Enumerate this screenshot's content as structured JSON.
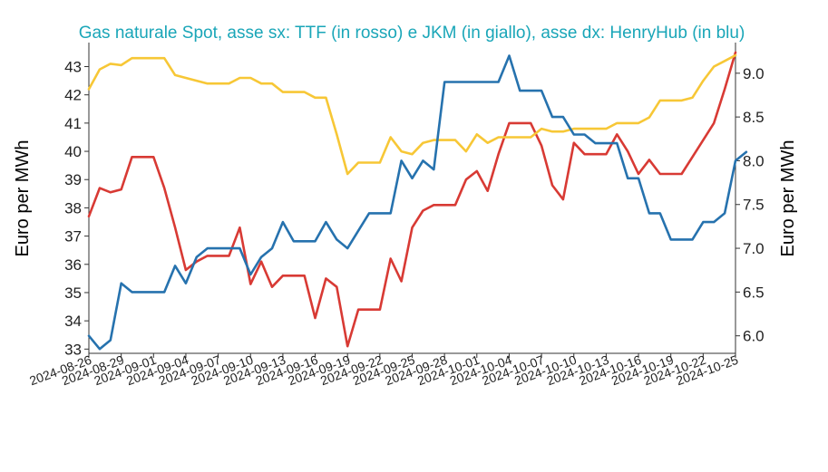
{
  "chart_data": {
    "type": "line",
    "title": "Gas naturale Spot, asse sx: TTF (in rosso) e JKM (in giallo), asse dx: HenryHub (in blu)",
    "ylabel_left": "Euro per MWh",
    "ylabel_right": "Euro per MWh",
    "ylim_left": [
      32.85,
      43.85
    ],
    "ylim_right": [
      5.8,
      9.35
    ],
    "yticks_left": [
      "33",
      "34",
      "35",
      "36",
      "37",
      "38",
      "39",
      "40",
      "41",
      "42",
      "43"
    ],
    "yticks_right": [
      "6.0",
      "6.5",
      "7.0",
      "7.5",
      "8.0",
      "8.5",
      "9.0"
    ],
    "x_start": "2024-08-26",
    "x_end": "2024-10-25",
    "xtick_labels": [
      "2024-08-26",
      "2024-08-29",
      "2024-09-01",
      "2024-09-04",
      "2024-09-07",
      "2024-09-10",
      "2024-09-13",
      "2024-09-16",
      "2024-09-19",
      "2024-09-22",
      "2024-09-25",
      "2024-09-28",
      "2024-10-01",
      "2024-10-04",
      "2024-10-07",
      "2024-10-10",
      "2024-10-13",
      "2024-10-16",
      "2024-10-19",
      "2024-10-22",
      "2024-10-25"
    ],
    "colors": {
      "title": "#1aa6b8",
      "ttf": "#d83a34",
      "jkm": "#f7c736",
      "hh": "#2672ae",
      "axis": "#333333"
    },
    "series": [
      {
        "axis": "left",
        "color": "#d83a34",
        "points": [
          [
            "2024-08-26",
            37.7
          ],
          [
            "2024-08-27",
            38.7
          ],
          [
            "2024-08-28",
            38.55
          ],
          [
            "2024-08-29",
            38.65
          ],
          [
            "2024-08-30",
            39.8
          ],
          [
            "2024-08-31",
            39.8
          ],
          [
            "2024-09-01",
            39.8
          ],
          [
            "2024-09-02",
            38.7
          ],
          [
            "2024-09-03",
            37.3
          ],
          [
            "2024-09-04",
            35.8
          ],
          [
            "2024-09-05",
            36.1
          ],
          [
            "2024-09-06",
            36.3
          ],
          [
            "2024-09-07",
            36.3
          ],
          [
            "2024-09-08",
            36.3
          ],
          [
            "2024-09-09",
            37.3
          ],
          [
            "2024-09-10",
            35.3
          ],
          [
            "2024-09-11",
            36.1
          ],
          [
            "2024-09-12",
            35.2
          ],
          [
            "2024-09-13",
            35.6
          ],
          [
            "2024-09-14",
            35.6
          ],
          [
            "2024-09-15",
            35.6
          ],
          [
            "2024-09-16",
            34.1
          ],
          [
            "2024-09-17",
            35.5
          ],
          [
            "2024-09-18",
            35.2
          ],
          [
            "2024-09-19",
            33.1
          ],
          [
            "2024-09-20",
            34.4
          ],
          [
            "2024-09-21",
            34.4
          ],
          [
            "2024-09-22",
            34.4
          ],
          [
            "2024-09-23",
            36.2
          ],
          [
            "2024-09-24",
            35.4
          ],
          [
            "2024-09-25",
            37.3
          ],
          [
            "2024-09-26",
            37.9
          ],
          [
            "2024-09-27",
            38.1
          ],
          [
            "2024-09-28",
            38.1
          ],
          [
            "2024-09-29",
            38.1
          ],
          [
            "2024-09-30",
            39.0
          ],
          [
            "2024-10-01",
            39.3
          ],
          [
            "2024-10-02",
            38.6
          ],
          [
            "2024-10-03",
            39.9
          ],
          [
            "2024-10-04",
            41.0
          ],
          [
            "2024-10-05",
            41.0
          ],
          [
            "2024-10-06",
            41.0
          ],
          [
            "2024-10-07",
            40.2
          ],
          [
            "2024-10-08",
            38.8
          ],
          [
            "2024-10-09",
            38.3
          ],
          [
            "2024-10-10",
            40.3
          ],
          [
            "2024-10-11",
            39.9
          ],
          [
            "2024-10-12",
            39.9
          ],
          [
            "2024-10-13",
            39.9
          ],
          [
            "2024-10-14",
            40.6
          ],
          [
            "2024-10-15",
            40.0
          ],
          [
            "2024-10-16",
            39.2
          ],
          [
            "2024-10-17",
            39.7
          ],
          [
            "2024-10-18",
            39.2
          ],
          [
            "2024-10-19",
            39.2
          ],
          [
            "2024-10-20",
            39.2
          ],
          [
            "2024-10-21",
            39.8
          ],
          [
            "2024-10-22",
            40.4
          ],
          [
            "2024-10-23",
            41.0
          ],
          [
            "2024-10-24",
            42.2
          ],
          [
            "2024-10-25",
            43.5
          ]
        ]
      },
      {
        "axis": "left",
        "color": "#f7c736",
        "points": [
          [
            "2024-08-26",
            42.2
          ],
          [
            "2024-08-27",
            42.9
          ],
          [
            "2024-08-28",
            43.1
          ],
          [
            "2024-08-29",
            43.05
          ],
          [
            "2024-08-30",
            43.3
          ],
          [
            "2024-08-31",
            43.3
          ],
          [
            "2024-09-01",
            43.3
          ],
          [
            "2024-09-02",
            43.3
          ],
          [
            "2024-09-03",
            42.7
          ],
          [
            "2024-09-04",
            42.6
          ],
          [
            "2024-09-05",
            42.5
          ],
          [
            "2024-09-06",
            42.4
          ],
          [
            "2024-09-07",
            42.4
          ],
          [
            "2024-09-08",
            42.4
          ],
          [
            "2024-09-09",
            42.6
          ],
          [
            "2024-09-10",
            42.6
          ],
          [
            "2024-09-11",
            42.4
          ],
          [
            "2024-09-12",
            42.4
          ],
          [
            "2024-09-13",
            42.1
          ],
          [
            "2024-09-14",
            42.1
          ],
          [
            "2024-09-15",
            42.1
          ],
          [
            "2024-09-16",
            41.9
          ],
          [
            "2024-09-17",
            41.9
          ],
          [
            "2024-09-18",
            40.6
          ],
          [
            "2024-09-19",
            39.2
          ],
          [
            "2024-09-20",
            39.6
          ],
          [
            "2024-09-21",
            39.6
          ],
          [
            "2024-09-22",
            39.6
          ],
          [
            "2024-09-23",
            40.5
          ],
          [
            "2024-09-24",
            40.0
          ],
          [
            "2024-09-25",
            39.9
          ],
          [
            "2024-09-26",
            40.3
          ],
          [
            "2024-09-27",
            40.4
          ],
          [
            "2024-09-28",
            40.4
          ],
          [
            "2024-09-29",
            40.4
          ],
          [
            "2024-09-30",
            40.0
          ],
          [
            "2024-10-01",
            40.6
          ],
          [
            "2024-10-02",
            40.3
          ],
          [
            "2024-10-03",
            40.5
          ],
          [
            "2024-10-04",
            40.5
          ],
          [
            "2024-10-05",
            40.5
          ],
          [
            "2024-10-06",
            40.5
          ],
          [
            "2024-10-07",
            40.8
          ],
          [
            "2024-10-08",
            40.7
          ],
          [
            "2024-10-09",
            40.7
          ],
          [
            "2024-10-10",
            40.8
          ],
          [
            "2024-10-11",
            40.8
          ],
          [
            "2024-10-12",
            40.8
          ],
          [
            "2024-10-13",
            40.8
          ],
          [
            "2024-10-14",
            41.0
          ],
          [
            "2024-10-15",
            41.0
          ],
          [
            "2024-10-16",
            41.0
          ],
          [
            "2024-10-17",
            41.2
          ],
          [
            "2024-10-18",
            41.8
          ],
          [
            "2024-10-19",
            41.8
          ],
          [
            "2024-10-20",
            41.8
          ],
          [
            "2024-10-21",
            41.9
          ],
          [
            "2024-10-22",
            42.5
          ],
          [
            "2024-10-23",
            43.0
          ],
          [
            "2024-10-24",
            43.2
          ],
          [
            "2024-10-25",
            43.4
          ]
        ]
      },
      {
        "axis": "right",
        "color": "#2672ae",
        "points": [
          [
            "2024-08-26",
            6.0
          ],
          [
            "2024-08-27",
            5.85
          ],
          [
            "2024-08-28",
            5.95
          ],
          [
            "2024-08-29",
            6.6
          ],
          [
            "2024-08-30",
            6.5
          ],
          [
            "2024-08-31",
            6.5
          ],
          [
            "2024-09-01",
            6.5
          ],
          [
            "2024-09-02",
            6.5
          ],
          [
            "2024-09-03",
            6.8
          ],
          [
            "2024-09-04",
            6.6
          ],
          [
            "2024-09-05",
            6.9
          ],
          [
            "2024-09-06",
            7.0
          ],
          [
            "2024-09-07",
            7.0
          ],
          [
            "2024-09-08",
            7.0
          ],
          [
            "2024-09-09",
            7.0
          ],
          [
            "2024-09-10",
            6.7
          ],
          [
            "2024-09-11",
            6.9
          ],
          [
            "2024-09-12",
            7.0
          ],
          [
            "2024-09-13",
            7.3
          ],
          [
            "2024-09-14",
            7.08
          ],
          [
            "2024-09-15",
            7.08
          ],
          [
            "2024-09-16",
            7.08
          ],
          [
            "2024-09-17",
            7.3
          ],
          [
            "2024-09-18",
            7.1
          ],
          [
            "2024-09-19",
            7.0
          ],
          [
            "2024-09-20",
            7.2
          ],
          [
            "2024-09-21",
            7.4
          ],
          [
            "2024-09-22",
            7.4
          ],
          [
            "2024-09-23",
            7.4
          ],
          [
            "2024-09-24",
            8.0
          ],
          [
            "2024-09-25",
            7.8
          ],
          [
            "2024-09-26",
            8.0
          ],
          [
            "2024-09-27",
            7.9
          ],
          [
            "2024-09-28",
            8.9
          ],
          [
            "2024-09-29",
            8.9
          ],
          [
            "2024-09-30",
            8.9
          ],
          [
            "2024-10-01",
            8.9
          ],
          [
            "2024-10-02",
            8.9
          ],
          [
            "2024-10-03",
            8.9
          ],
          [
            "2024-10-04",
            9.2
          ],
          [
            "2024-10-05",
            8.8
          ],
          [
            "2024-10-06",
            8.8
          ],
          [
            "2024-10-07",
            8.8
          ],
          [
            "2024-10-08",
            8.5
          ],
          [
            "2024-10-09",
            8.5
          ],
          [
            "2024-10-10",
            8.3
          ],
          [
            "2024-10-11",
            8.3
          ],
          [
            "2024-10-12",
            8.2
          ],
          [
            "2024-10-13",
            8.2
          ],
          [
            "2024-10-14",
            8.2
          ],
          [
            "2024-10-15",
            7.8
          ],
          [
            "2024-10-16",
            7.8
          ],
          [
            "2024-10-17",
            7.4
          ],
          [
            "2024-10-18",
            7.4
          ],
          [
            "2024-10-19",
            7.1
          ],
          [
            "2024-10-20",
            7.1
          ],
          [
            "2024-10-21",
            7.1
          ],
          [
            "2024-10-22",
            7.3
          ],
          [
            "2024-10-23",
            7.3
          ],
          [
            "2024-10-24",
            7.4
          ],
          [
            "2024-10-25",
            8.0
          ],
          [
            "2024-10-26",
            8.1
          ]
        ]
      }
    ]
  }
}
